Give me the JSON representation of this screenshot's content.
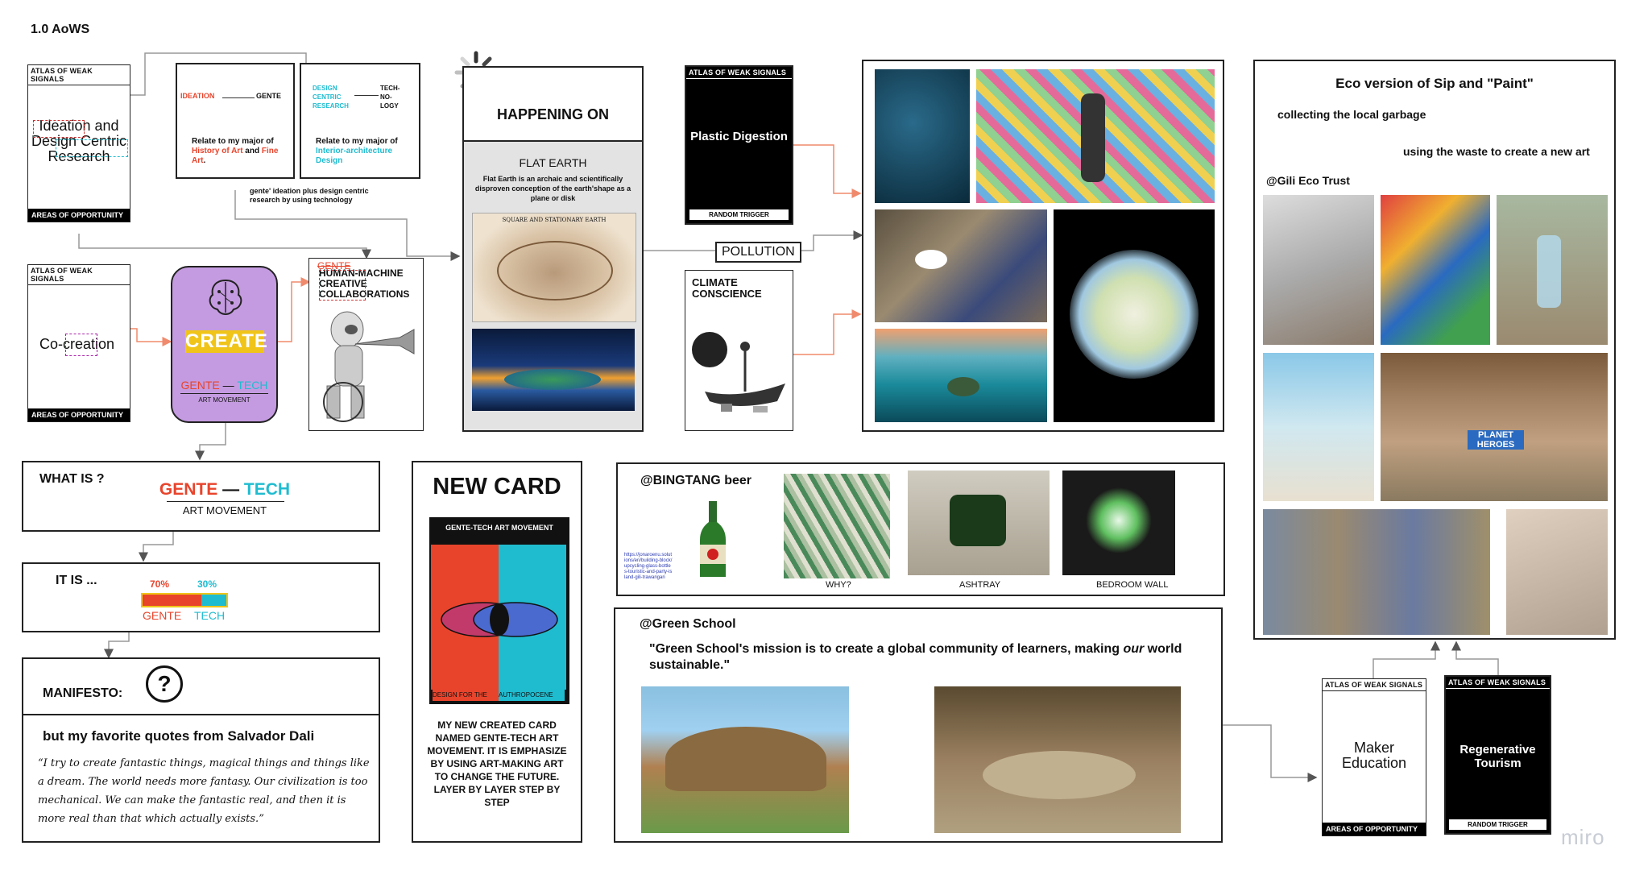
{
  "board": {
    "title": "1.0 AoWS",
    "watermark": "miro"
  },
  "cards": {
    "ideation": {
      "head": "ATLAS OF WEAK SIGNALS",
      "body": "Ideation and Design Centric Research",
      "foot": "AREAS OF OPPORTUNITY"
    },
    "cocreation": {
      "head": "ATLAS OF WEAK SIGNALS",
      "body": "Co-creation",
      "foot": "AREAS OF OPPORTUNITY"
    },
    "plastic": {
      "head": "ATLAS OF WEAK SIGNALS",
      "body": "Plastic Digestion",
      "foot": "RANDOM TRIGGER"
    },
    "maker": {
      "head": "ATLAS OF WEAK SIGNALS",
      "body": "Maker Education",
      "foot": "AREAS OF OPPORTUNITY"
    },
    "regen": {
      "head": "ATLAS OF WEAK SIGNALS",
      "body": "Regenerative Tourism",
      "foot": "RANDOM TRIGGER"
    }
  },
  "ideationFlow": {
    "left": {
      "from": "IDEATION",
      "to": "GENTE",
      "note_pre": "Relate to my major of ",
      "note_hl": "History of Art",
      "note_mid": " and ",
      "note_hl2": "Fine Art",
      "note_end": "."
    },
    "right": {
      "from": "DESIGN CENTRIC RESEARCH",
      "to": "TECH-NO-LOGY",
      "note_pre": "Relate to my major of ",
      "note_hl": "Interior-architecture Design"
    },
    "caption": "gente' ideation plus design centric research by using technology"
  },
  "create": {
    "label": "CREATE",
    "gente": "GENTE",
    "dash": "—",
    "tech": "TECH",
    "sub": "ART MOVEMENT"
  },
  "hmc": {
    "strike": "GENTE",
    "line1": "HUMAN-MACHINE",
    "line2": "CREATIVE",
    "line3": "COLLABORATIONS"
  },
  "happening": {
    "title": "HAPPENING ON",
    "sub": "FLAT EARTH",
    "desc": "Flat Earth is an archaic and scientifically disproven conception of the earth'shape as a plane or disk",
    "map_caption": "SQUARE AND STATIONARY EARTH"
  },
  "pollution": {
    "label": "POLLUTION"
  },
  "climate": {
    "label": "CLIMATE CONSCIENCE"
  },
  "whatis": {
    "q": "WHAT  IS ?",
    "gente": "GENTE",
    "dash": "—",
    "tech": "TECH",
    "sub": "ART MOVEMENT"
  },
  "itis": {
    "q": "IT IS ...",
    "pct1": "70%",
    "pct2": "30%",
    "gente": "GENTE",
    "tech": "TECH",
    "gente_share": 0.7
  },
  "manifesto": {
    "title": "MANIFESTO:",
    "icon": "?",
    "intro": "but my favorite quotes from Salvador Dali",
    "quote": "“I try to create fantastic things, magical things and things like a dream. The world needs more fantasy. Our civilization is too mechanical. We can make the fantastic real, and then it is more real than that which actually exists.”"
  },
  "newcard": {
    "title": "NEW CARD",
    "card_head": "GENTE-TECH ART MOVEMENT",
    "card_foot_left": "DESIGN FOR THE",
    "card_foot_right": "AUTHROPOCENE",
    "desc": "MY NEW CREATED CARD NAMED GENTE-TECH ART MOVEMENT. IT IS EMPHASIZE BY USING ART-MAKING ART TO CHANGE THE FUTURE. LAYER BY LAYER STEP BY STEP"
  },
  "bintang": {
    "title": "@BINGTANG beer",
    "link": "https://jonaroenu.solutions/en/building-block/upcycling-glass-bottles-touristic-and-party-island-gili-trawangan",
    "why": "WHY?",
    "ashtray": "ASHTRAY",
    "wall": "BEDROOM WALL"
  },
  "greenschool": {
    "title": "@Green School",
    "quote_pre": "\"Green School's mission is to create a global community of learners, making ",
    "quote_em": "our",
    "quote_post": " world sustainable.\""
  },
  "eco": {
    "title": "Eco version of Sip and \"Paint\"",
    "step1": "collecting the local garbage",
    "step2": "using the waste to create a new art",
    "trust": "@Gili Eco Trust",
    "planet": "PLANET HEROES"
  },
  "colors": {
    "gente": "#e8442c",
    "tech": "#1fbcd0",
    "create_bg": "#c49be0",
    "create_label": "#f0c419",
    "arrow": "#f08a6c"
  }
}
